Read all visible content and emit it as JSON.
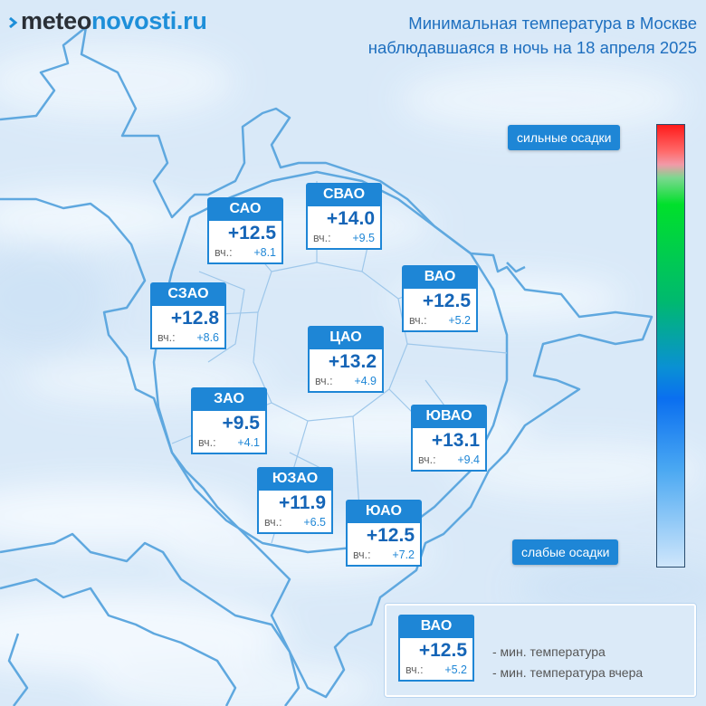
{
  "logo": {
    "part1": "meteo",
    "part2": "novosti.ru"
  },
  "title": {
    "line1": "Минимальная температура в Москве",
    "line2": "наблюдавшаяся в ночь на 18 апреля 2025"
  },
  "scale": {
    "top_label": "сильные осадки",
    "bottom_label": "слабые осадки"
  },
  "yesterday_prefix": "вч.:",
  "districts": [
    {
      "name": "САО",
      "temp": "+12.5",
      "yesterday": "+8.1"
    },
    {
      "name": "СВАО",
      "temp": "+14.0",
      "yesterday": "+9.5"
    },
    {
      "name": "СЗАО",
      "temp": "+12.8",
      "yesterday": "+8.6"
    },
    {
      "name": "ВАО",
      "temp": "+12.5",
      "yesterday": "+5.2"
    },
    {
      "name": "ЦАО",
      "temp": "+13.2",
      "yesterday": "+4.9"
    },
    {
      "name": "ЗАО",
      "temp": "+9.5",
      "yesterday": "+4.1"
    },
    {
      "name": "ЮВАО",
      "temp": "+13.1",
      "yesterday": "+9.4"
    },
    {
      "name": "ЮЗАО",
      "temp": "+11.9",
      "yesterday": "+6.5"
    },
    {
      "name": "ЮАО",
      "temp": "+12.5",
      "yesterday": "+7.2"
    }
  ],
  "legend": {
    "sample": {
      "name": "ВАО",
      "temp": "+12.5",
      "yesterday": "+5.2"
    },
    "line1": "- мин. температура",
    "line2": "- мин. температура вчера"
  },
  "colors": {
    "accent": "#1e86d6",
    "title": "#1e6fbf",
    "map_background": "#dcebf9",
    "outline": "#5fa8df"
  }
}
